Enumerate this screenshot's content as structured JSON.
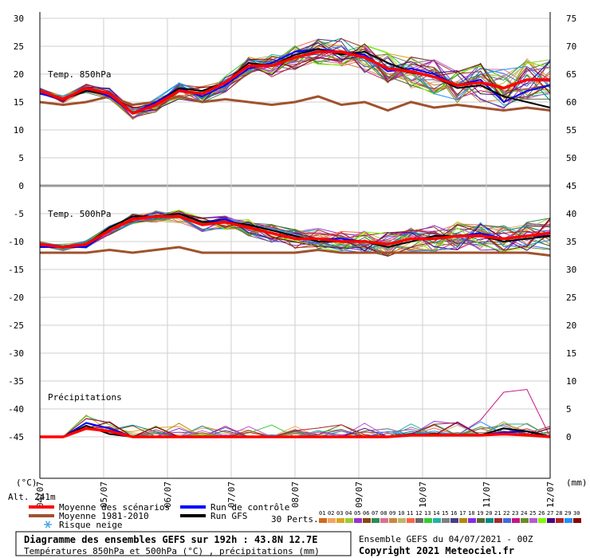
{
  "chart_data": {
    "type": "line",
    "x_dates": [
      "05/07",
      "06/07",
      "07/07",
      "08/07",
      "09/07",
      "10/07",
      "11/07",
      "12/07"
    ],
    "x_tick_labels": [
      "04/07",
      "05/07",
      "06/07",
      "07/07",
      "08/07",
      "09/07",
      "10/07",
      "11/07",
      "12/07"
    ],
    "y_left_ticks": [
      30,
      25,
      20,
      15,
      10,
      5,
      0,
      -5,
      -10,
      -15,
      -20,
      -25,
      -30,
      -35,
      -40,
      -45
    ],
    "y_right_ticks": [
      75,
      70,
      65,
      60,
      55,
      50,
      45,
      40,
      35,
      30,
      25,
      20,
      15,
      10,
      5,
      0
    ],
    "y_left_unit": "(°C)",
    "y_right_unit": "(mm)",
    "altitude": "Alt. 241m",
    "panels": [
      {
        "label": "Temp. 850hPa"
      },
      {
        "label": "Temp. 500hPa"
      },
      {
        "label": "Précipitations"
      }
    ],
    "series": [
      {
        "name": "Moyenne des scénarios",
        "color": "#ff0000",
        "t850": [
          17,
          15.5,
          17.5,
          16.5,
          13,
          14.5,
          17,
          16.5,
          18.5,
          21.5,
          21.5,
          23,
          24,
          24,
          23,
          21,
          20.5,
          19.5,
          18,
          18.5,
          17.5,
          19,
          19
        ],
        "t500": [
          -10.5,
          -11,
          -10.5,
          -8,
          -6,
          -5.5,
          -5.5,
          -7,
          -6.5,
          -7.5,
          -8.5,
          -9.5,
          -9.5,
          -10,
          -10,
          -10.5,
          -9.5,
          -9.5,
          -9,
          -9,
          -9.5,
          -9,
          -8.5
        ],
        "precip": [
          0,
          0,
          1.5,
          1,
          0,
          0,
          0,
          0,
          0,
          0,
          0,
          0,
          0,
          0,
          0,
          0,
          0.3,
          0.3,
          0.3,
          0.3,
          0.5,
          0.3,
          0
        ]
      },
      {
        "name": "Moyenne 1981-2010",
        "color": "#a0522d",
        "t850": [
          15,
          14.5,
          15,
          16,
          14.5,
          15,
          16,
          15,
          15.5,
          15,
          14.5,
          15,
          16,
          14.5,
          15,
          13.5,
          15,
          14,
          14.5,
          14,
          13.5,
          14,
          13.5
        ],
        "t500": [
          -12,
          -12,
          -12,
          -11.5,
          -12,
          -11.5,
          -11,
          -12,
          -12,
          -12,
          -12,
          -12,
          -11.5,
          -12,
          -12,
          -12,
          -12,
          -12,
          -12,
          -12,
          -12,
          -12,
          -12.5
        ],
        "precip": [
          0,
          0,
          0,
          0,
          0,
          0,
          0,
          0,
          0,
          0,
          0,
          0,
          0,
          0,
          0,
          0,
          0,
          0,
          0,
          0,
          0,
          0,
          0
        ]
      },
      {
        "name": "Run de contrôle",
        "color": "#0000ff",
        "t850": [
          16.5,
          15.5,
          17.5,
          16,
          13,
          15,
          17.5,
          16,
          18,
          21,
          22,
          24,
          24.5,
          24,
          23.5,
          20.5,
          21,
          20,
          18,
          19,
          15,
          17,
          18
        ],
        "t500": [
          -11,
          -11,
          -11,
          -8,
          -6,
          -5.5,
          -5,
          -6.5,
          -6,
          -7.5,
          -8.5,
          -9.5,
          -9.5,
          -9.5,
          -10,
          -10.5,
          -9.5,
          -9.5,
          -9,
          -8.5,
          -9.5,
          -9,
          -9
        ],
        "precip": [
          0,
          0,
          2.5,
          1.5,
          0,
          0,
          0,
          0,
          0,
          0,
          0,
          0,
          0,
          0,
          0,
          0,
          0.5,
          0.3,
          0.3,
          0.3,
          0.8,
          1,
          0
        ]
      },
      {
        "name": "Run GFS",
        "color": "#000000",
        "t850": [
          17,
          15.5,
          17,
          16.5,
          13,
          14.5,
          17.5,
          17,
          18.5,
          22,
          21.5,
          23.5,
          24.5,
          23.5,
          24,
          22,
          20.5,
          19.5,
          17.5,
          18,
          16,
          15,
          14
        ],
        "t500": [
          -10.5,
          -11,
          -10.5,
          -7.5,
          -5.5,
          -5.5,
          -5,
          -6.5,
          -6.5,
          -7,
          -8,
          -9,
          -10,
          -10,
          -10,
          -11,
          -10,
          -9,
          -9,
          -9,
          -10,
          -9.5,
          -9
        ],
        "precip": [
          0,
          0,
          2,
          0.5,
          0,
          0,
          0,
          0,
          0,
          0,
          0,
          0,
          0,
          0,
          0,
          0,
          0.3,
          0.5,
          0.3,
          0.3,
          1.5,
          1,
          0
        ]
      }
    ],
    "risk_snow_label": "Risque neige",
    "perts_label": "30 Perts.",
    "perts_numbers": [
      "01",
      "02",
      "03",
      "04",
      "05",
      "06",
      "07",
      "08",
      "09",
      "10",
      "11",
      "12",
      "13",
      "14",
      "15",
      "16",
      "17",
      "18",
      "19",
      "20",
      "21",
      "22",
      "23",
      "24",
      "25",
      "26",
      "27",
      "28",
      "29",
      "30"
    ],
    "perts_colors": [
      "#d2691e",
      "#f4a460",
      "#daa520",
      "#9acd32",
      "#9932cc",
      "#8b4513",
      "#2e8b57",
      "#db7093",
      "#cd853f",
      "#bdb76b",
      "#ff6347",
      "#696969",
      "#32cd32",
      "#20b2aa",
      "#808080",
      "#483d8b",
      "#b8860b",
      "#8a2be2",
      "#556b2f",
      "#008b8b",
      "#a52a2a",
      "#4169e1",
      "#c71585",
      "#6b8e23",
      "#ba55d3",
      "#7cfc00",
      "#4b0082",
      "#b22222",
      "#1e90ff",
      "#8b0000"
    ],
    "title": "Diagramme des ensembles GEFS sur 192h : 43.8N 12.7E",
    "subtitle": "Températures 850hPa et 500hPa (°C) , précipitations (mm)",
    "run_label": "Ensemble GEFS du 04/07/2021 - 00Z",
    "copyright": "Copyright 2021 Meteociel.fr"
  }
}
